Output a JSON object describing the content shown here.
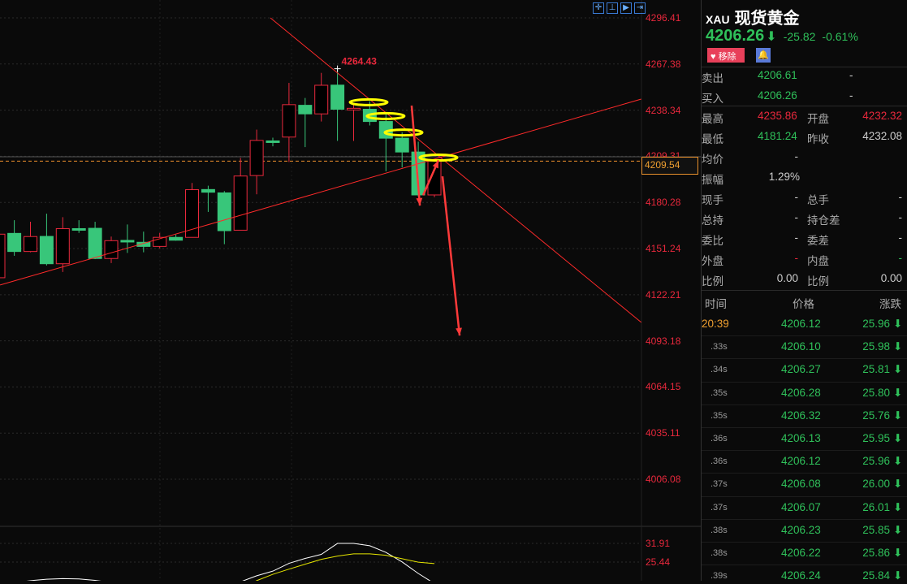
{
  "toolbar": {
    "icons": [
      "crosshair-icon",
      "range-icon",
      "play-icon",
      "export-icon"
    ]
  },
  "axis": {
    "ticks": [
      "4296.41",
      "4267.38",
      "4238.34",
      "4209.31",
      "4180.28",
      "4151.24",
      "4122.21",
      "4093.18",
      "4064.15",
      "4035.11",
      "4006.08"
    ],
    "indicator_ticks": [
      "31.91",
      "25.44"
    ],
    "price_box": "4209.54"
  },
  "chart_data": {
    "type": "candlestick",
    "ylim": [
      4006.08,
      4296.41
    ],
    "high_label": "4264.43",
    "current_price": 4206.26,
    "candles": [
      [
        4132.9,
        4162,
        4131,
        4160.3
      ],
      [
        4160.8,
        4169.1,
        4146.7,
        4149.4
      ],
      [
        4149.4,
        4168.1,
        4148.9,
        4158.8
      ],
      [
        4158.9,
        4173.2,
        4140.6,
        4141.7
      ],
      [
        4141.7,
        4171,
        4136.5,
        4163.8
      ],
      [
        4163.8,
        4169.1,
        4161.1,
        4163.2
      ],
      [
        4164,
        4168.1,
        4144.6,
        4145
      ],
      [
        4145,
        4158.8,
        4142.1,
        4156.2
      ],
      [
        4156.4,
        4166.4,
        4148.5,
        4155.8
      ],
      [
        4155.2,
        4161.9,
        4148.9,
        4152.6
      ],
      [
        4152.6,
        4161.1,
        4151.4,
        4158.3
      ],
      [
        4158.3,
        4160,
        4156.2,
        4156.5
      ],
      [
        4158.3,
        4192.5,
        4158.3,
        4188.3
      ],
      [
        4188.4,
        4190.8,
        4174.3,
        4186.7
      ],
      [
        4186.3,
        4187.4,
        4154,
        4162.5
      ],
      [
        4162.8,
        4208.3,
        4162.8,
        4196.9
      ],
      [
        4197.2,
        4226.1,
        4185.4,
        4219.3
      ],
      [
        4219,
        4221,
        4215.6,
        4218.3
      ],
      [
        4221.4,
        4255.5,
        4205.7,
        4241.8
      ],
      [
        4241.4,
        4246,
        4215.1,
        4236
      ],
      [
        4236,
        4261.8,
        4231.2,
        4254
      ],
      [
        4254.1,
        4264.43,
        4219,
        4238.9
      ],
      [
        4238.9,
        4242.4,
        4219,
        4239.5
      ],
      [
        4238.9,
        4244,
        4228.7,
        4231.2
      ],
      [
        4231.2,
        4236.3,
        4199.8,
        4220.7
      ],
      [
        4220.7,
        4224.4,
        4202.3,
        4212
      ],
      [
        4212,
        4218.5,
        4184,
        4185
      ],
      [
        4185,
        4206,
        4183.6,
        4206.26
      ]
    ],
    "indicator": {
      "ylim": [
        18.98,
        31.91
      ],
      "white": [
        null,
        18.3,
        19,
        19.5,
        19.7,
        19.6,
        19.1,
        18.4,
        17.5,
        17,
        16.5,
        16.8,
        18,
        18.7,
        18.5,
        18.6,
        20.7,
        22.3,
        25,
        26.7,
        28.1,
        31.9,
        31.9,
        31.1,
        28.8,
        25.5,
        21.5,
        18
      ],
      "yellow": [
        null,
        null,
        null,
        null,
        null,
        null,
        null,
        null,
        null,
        null,
        null,
        null,
        null,
        null,
        null,
        16.5,
        19,
        21.2,
        23,
        24.7,
        26.4,
        27.5,
        28.3,
        28.3,
        27.8,
        26.6,
        25.4,
        24.9
      ]
    },
    "annotations": {
      "lines": [
        [
          1.12,
          4128.3,
          40.8,
          4245.3
        ],
        [
          17.85,
          4296.41,
          40.8,
          4104.8
        ]
      ],
      "arrows": [
        [
          26.59,
          4241.2,
          27.1,
          4178.3
        ],
        [
          27.3,
          4184.8,
          28.25,
          4206.8
        ],
        [
          28.5,
          4196.7,
          29.56,
          4096.5
        ]
      ],
      "ellipses": [
        [
          23.93,
          4243.3
        ],
        [
          24.98,
          4234.6
        ],
        [
          26.09,
          4224.3
        ],
        [
          28.25,
          4208.5
        ]
      ]
    },
    "colors": {
      "up": "#e8283c",
      "down": "#38c67a",
      "line": "#ff2a2a",
      "highlight": "#ffff00"
    }
  },
  "panel": {
    "symbol": "XAU",
    "name": "现货黄金",
    "price": "4206.26",
    "arrow": "⬇",
    "change": "-25.82",
    "pct": "-0.61%",
    "fav_label": "移除",
    "bell_icon": "bell-icon",
    "bidask": [
      {
        "label": "卖出",
        "value": "4206.61",
        "vol": "-"
      },
      {
        "label": "买入",
        "value": "4206.26",
        "vol": "-"
      }
    ],
    "stats": [
      [
        "最高",
        "4235.86",
        "开盘",
        "4232.32"
      ],
      [
        "最低",
        "4181.24",
        "昨收",
        "4232.08"
      ],
      [
        "均价",
        "-",
        "",
        ""
      ],
      [
        "振幅",
        "1.29%",
        "",
        ""
      ],
      [
        "现手",
        "-",
        "总手",
        "-"
      ],
      [
        "总持",
        "-",
        "持仓差",
        "-"
      ],
      [
        "委比",
        "-",
        "委差",
        "-"
      ],
      [
        "外盘",
        "-",
        "内盘",
        "-"
      ],
      [
        "比例",
        "0.00",
        "比例",
        "0.00"
      ]
    ],
    "trade_headers": [
      "时间",
      "价格",
      "涨跌"
    ],
    "trades": [
      [
        "20:39",
        "4206.12",
        "25.96"
      ],
      [
        ".33s",
        "4206.10",
        "25.98"
      ],
      [
        ".34s",
        "4206.27",
        "25.81"
      ],
      [
        ".35s",
        "4206.28",
        "25.80"
      ],
      [
        ".35s",
        "4206.32",
        "25.76"
      ],
      [
        ".36s",
        "4206.13",
        "25.95"
      ],
      [
        ".36s",
        "4206.12",
        "25.96"
      ],
      [
        ".37s",
        "4206.08",
        "26.00"
      ],
      [
        ".37s",
        "4206.07",
        "26.01"
      ],
      [
        ".38s",
        "4206.23",
        "25.85"
      ],
      [
        ".38s",
        "4206.22",
        "25.86"
      ],
      [
        ".39s",
        "4206.24",
        "25.84"
      ]
    ]
  }
}
